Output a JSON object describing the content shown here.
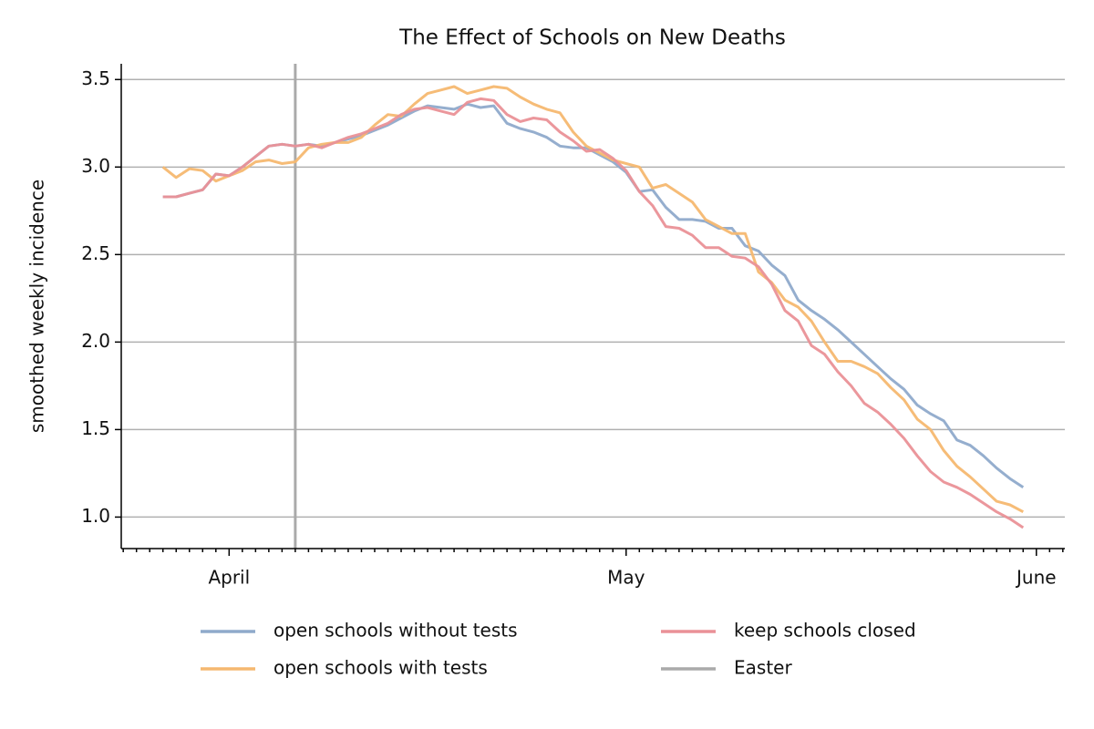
{
  "chart_data": {
    "type": "line",
    "title": "The Effect of Schools on New Deaths",
    "y_label": "smoothed weekly incidence",
    "categories": [
      null,
      null,
      null,
      null,
      null,
      null,
      null,
      null,
      "April",
      null,
      null,
      null,
      null,
      null,
      null,
      null,
      null,
      null,
      null,
      null,
      null,
      null,
      null,
      null,
      null,
      null,
      null,
      null,
      null,
      null,
      null,
      null,
      null,
      null,
      null,
      null,
      null,
      null,
      "May",
      null,
      null,
      null,
      null,
      null,
      null,
      null,
      null,
      null,
      null,
      null,
      null,
      null,
      null,
      null,
      null,
      null,
      null,
      null,
      null,
      null,
      null,
      null,
      null,
      null,
      null,
      null,
      null,
      null,
      null,
      "June",
      null,
      null
    ],
    "series": [
      {
        "name": "open schools without tests",
        "color": "#8faacb",
        "values": [
          null,
          null,
          null,
          2.83,
          2.83,
          2.85,
          2.87,
          2.96,
          2.95,
          3.0,
          3.06,
          3.12,
          3.13,
          3.12,
          3.13,
          3.12,
          3.14,
          3.16,
          3.18,
          3.21,
          3.24,
          3.28,
          3.32,
          3.35,
          3.34,
          3.33,
          3.36,
          3.34,
          3.35,
          3.25,
          3.22,
          3.2,
          3.17,
          3.12,
          3.11,
          3.11,
          3.07,
          3.03,
          2.97,
          2.86,
          2.87,
          2.77,
          2.7,
          2.7,
          2.69,
          2.65,
          2.65,
          2.55,
          2.52,
          2.44,
          2.38,
          2.24,
          2.18,
          2.13,
          2.07,
          2.0,
          1.93,
          1.86,
          1.79,
          1.73,
          1.64,
          1.59,
          1.55,
          1.44,
          1.41,
          1.35,
          1.28,
          1.22,
          1.17,
          null,
          null,
          null
        ]
      },
      {
        "name": "open schools with tests",
        "color": "#f5b870",
        "values": [
          null,
          null,
          null,
          3.0,
          2.94,
          2.99,
          2.98,
          2.92,
          2.95,
          2.98,
          3.03,
          3.04,
          3.02,
          3.03,
          3.11,
          3.13,
          3.14,
          3.14,
          3.17,
          3.24,
          3.3,
          3.29,
          3.36,
          3.42,
          3.44,
          3.46,
          3.42,
          3.44,
          3.46,
          3.45,
          3.4,
          3.36,
          3.33,
          3.31,
          3.2,
          3.12,
          3.08,
          3.04,
          3.02,
          3.0,
          2.88,
          2.9,
          2.85,
          2.8,
          2.7,
          2.66,
          2.62,
          2.62,
          2.4,
          2.34,
          2.24,
          2.2,
          2.12,
          2.0,
          1.89,
          1.89,
          1.86,
          1.82,
          1.74,
          1.67,
          1.56,
          1.5,
          1.38,
          1.29,
          1.23,
          1.16,
          1.09,
          1.07,
          1.03,
          null,
          null,
          null
        ]
      },
      {
        "name": "keep schools closed",
        "color": "#ea9197",
        "values": [
          null,
          null,
          null,
          2.83,
          2.83,
          2.85,
          2.87,
          2.96,
          2.95,
          3.0,
          3.06,
          3.12,
          3.13,
          3.12,
          3.13,
          3.11,
          3.14,
          3.17,
          3.19,
          3.22,
          3.25,
          3.3,
          3.33,
          3.34,
          3.32,
          3.3,
          3.37,
          3.39,
          3.38,
          3.3,
          3.26,
          3.28,
          3.27,
          3.2,
          3.15,
          3.09,
          3.1,
          3.05,
          2.98,
          2.86,
          2.78,
          2.66,
          2.65,
          2.61,
          2.54,
          2.54,
          2.49,
          2.48,
          2.43,
          2.33,
          2.18,
          2.12,
          1.98,
          1.93,
          1.83,
          1.75,
          1.65,
          1.6,
          1.53,
          1.45,
          1.35,
          1.26,
          1.2,
          1.17,
          1.13,
          1.08,
          1.03,
          0.99,
          0.94,
          null,
          null,
          null
        ]
      }
    ],
    "vlines": [
      {
        "name": "Easter",
        "color": "#aaaaaa",
        "index": 13
      }
    ],
    "ylim": [
      0.82,
      3.59
    ],
    "yticks": [
      {
        "value": 1,
        "label": "1.0"
      },
      1.5,
      {
        "value": 2,
        "label": "2.0"
      },
      2.5,
      {
        "value": 3,
        "label": "3.0"
      },
      3.5
    ],
    "grid": true,
    "legend": "lower center"
  }
}
